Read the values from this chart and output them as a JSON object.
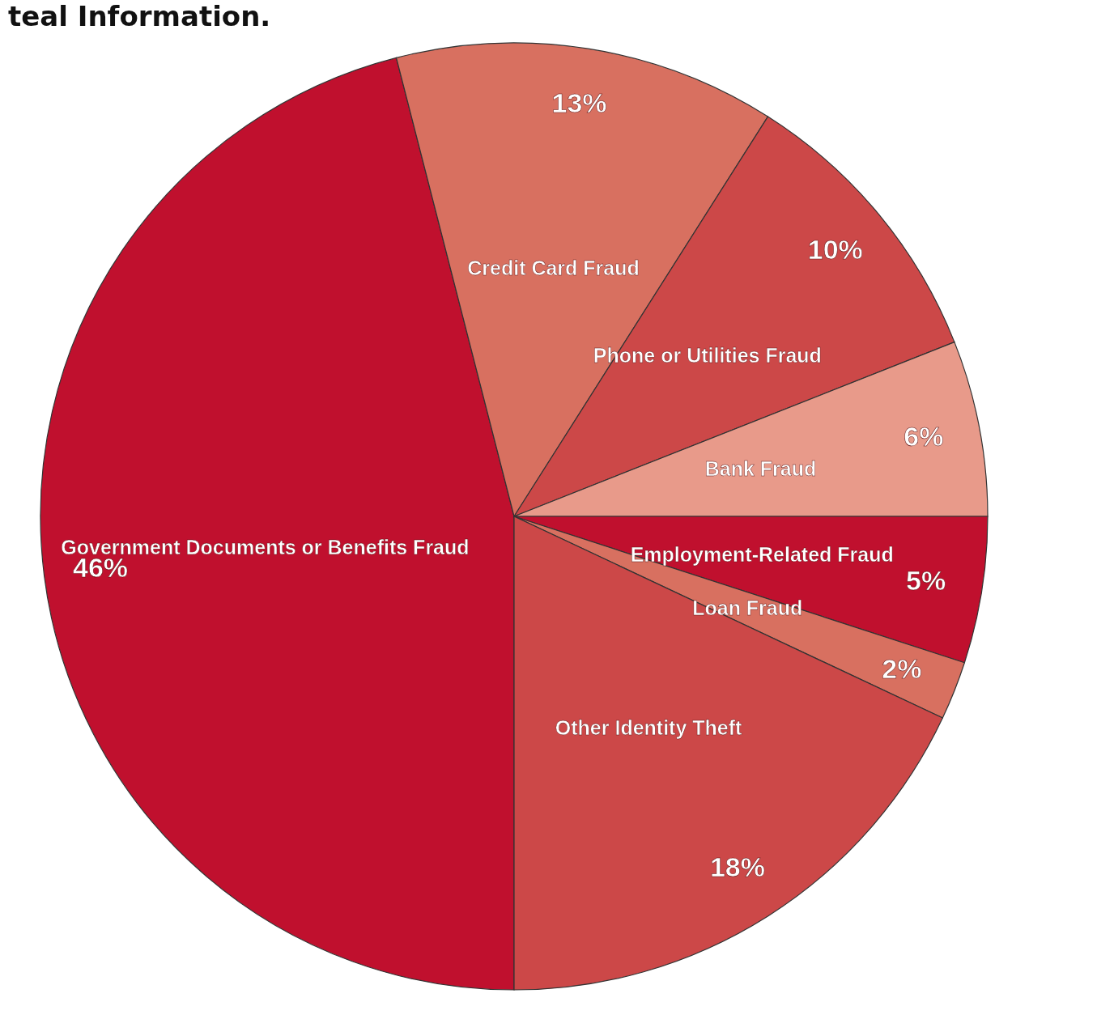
{
  "chart_data": {
    "type": "pie",
    "title": "teal Information.",
    "categories": [
      "Government Documents or Benefits Fraud",
      "Credit Card Fraud",
      "Phone or Utilities Fraud",
      "Bank Fraud",
      "Employment-Related Fraud",
      "Loan Fraud",
      "Other Identity Theft"
    ],
    "values": [
      46,
      13,
      10,
      6,
      5,
      2,
      18
    ],
    "value_labels": [
      "46%",
      "13%",
      "10%",
      "6%",
      "5%",
      "2%",
      "18%"
    ],
    "colors": [
      "#c0102e",
      "#d87060",
      "#cc4848",
      "#e89a8a",
      "#c0102e",
      "#d87060",
      "#cc4848"
    ],
    "legend": false
  }
}
